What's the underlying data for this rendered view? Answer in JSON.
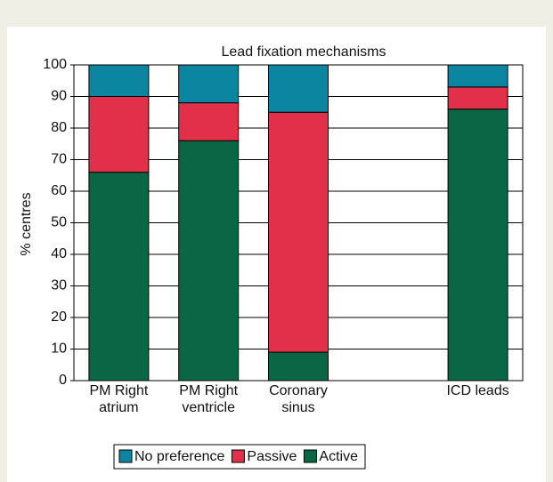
{
  "chart_data": {
    "type": "stacked_bar",
    "title": "Lead fixation mechanisms",
    "y_label": "% centres",
    "categories": [
      "PM Right atrium",
      "PM Right ventricle",
      "Coronary sinus",
      null,
      "ICD leads"
    ],
    "series": [
      {
        "name": "Active",
        "color": "#0b6646",
        "values": [
          66,
          76,
          9,
          null,
          86
        ]
      },
      {
        "name": "Passive",
        "color": "#e2304b",
        "values": [
          24,
          12,
          76,
          null,
          7
        ]
      },
      {
        "name": "No preference",
        "color": "#0c86a0",
        "values": [
          10,
          12,
          15,
          null,
          7
        ]
      }
    ],
    "ylim": [
      0,
      100
    ],
    "yticks": [
      0,
      10,
      20,
      30,
      40,
      50,
      60,
      70,
      80,
      90,
      100
    ],
    "grid": true
  }
}
